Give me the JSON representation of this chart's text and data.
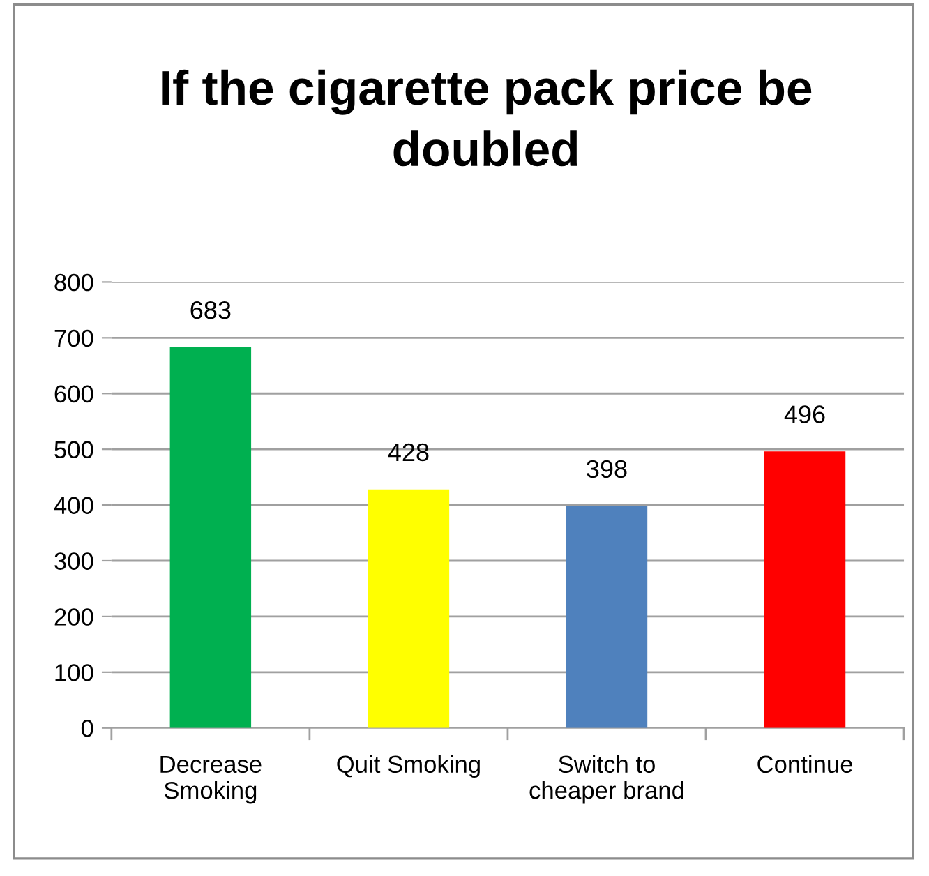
{
  "chart_data": {
    "type": "bar",
    "title": "If the cigarette pack price be\ndoubled",
    "categories": [
      "Decrease\nSmoking",
      "Quit Smoking",
      "Switch to\ncheaper brand",
      "Continue"
    ],
    "values": [
      683,
      428,
      398,
      496
    ],
    "colors": [
      "#00b050",
      "#ffff00",
      "#4f81bd",
      "#ff0000"
    ],
    "ylim": [
      0,
      800
    ],
    "yticks": [
      0,
      100,
      200,
      300,
      400,
      500,
      600,
      700,
      800
    ],
    "grid": "y",
    "data_labels": true,
    "legend": false
  }
}
